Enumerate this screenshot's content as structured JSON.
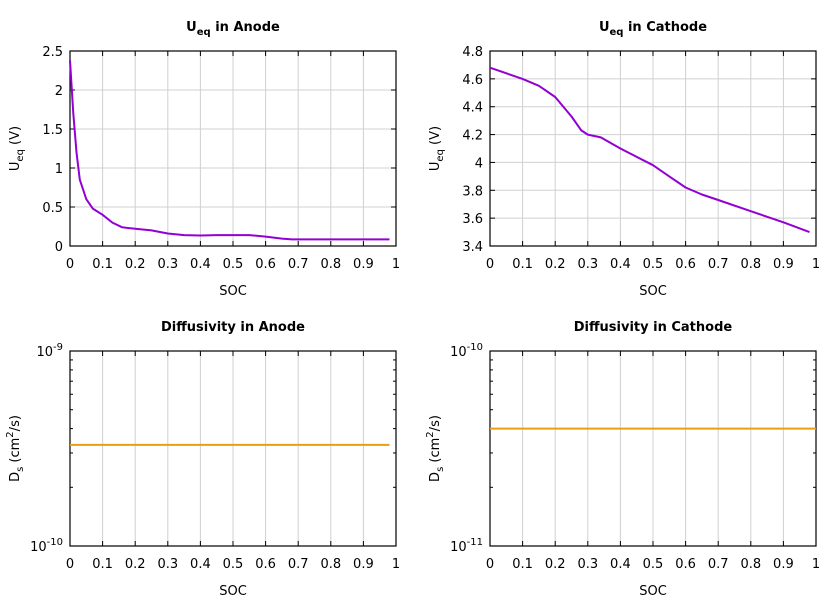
{
  "chart_data": [
    {
      "type": "line",
      "title": {
        "main": "U",
        "sub": "eq",
        "rest": " in Anode"
      },
      "xlabel": "SOC",
      "ylabel": {
        "main": "U",
        "sub": "eq",
        "rest": " (V)"
      },
      "xlim": [
        0,
        1
      ],
      "ylim": [
        0,
        2.5
      ],
      "yscale": "linear",
      "grid": true,
      "xticks": [
        "0",
        "0.1",
        "0.2",
        "0.3",
        "0.4",
        "0.5",
        "0.6",
        "0.7",
        "0.8",
        "0.9",
        "1"
      ],
      "yticks": [
        {
          "v": 0,
          "label": "0"
        },
        {
          "v": 0.5,
          "label": "0.5"
        },
        {
          "v": 1,
          "label": "1"
        },
        {
          "v": 1.5,
          "label": "1.5"
        },
        {
          "v": 2,
          "label": "2"
        },
        {
          "v": 2.5,
          "label": "2.5"
        }
      ],
      "color": "#9400d3",
      "series": [
        {
          "x": [
            0,
            0.01,
            0.02,
            0.03,
            0.05,
            0.07,
            0.1,
            0.13,
            0.16,
            0.2,
            0.25,
            0.3,
            0.35,
            0.4,
            0.45,
            0.5,
            0.55,
            0.6,
            0.65,
            0.68,
            0.75,
            0.85,
            0.98
          ],
          "y": [
            2.38,
            1.7,
            1.2,
            0.85,
            0.6,
            0.48,
            0.4,
            0.3,
            0.24,
            0.22,
            0.2,
            0.16,
            0.14,
            0.135,
            0.14,
            0.14,
            0.14,
            0.12,
            0.095,
            0.085,
            0.085,
            0.085,
            0.085
          ]
        }
      ]
    },
    {
      "type": "line",
      "title": {
        "main": "U",
        "sub": "eq",
        "rest": " in Cathode"
      },
      "xlabel": "SOC",
      "ylabel": {
        "main": "U",
        "sub": "eq",
        "rest": " (V)"
      },
      "xlim": [
        0,
        1
      ],
      "ylim": [
        3.4,
        4.8
      ],
      "yscale": "linear",
      "grid": true,
      "xticks": [
        "0",
        "0.1",
        "0.2",
        "0.3",
        "0.4",
        "0.5",
        "0.6",
        "0.7",
        "0.8",
        "0.9",
        "1"
      ],
      "yticks": [
        {
          "v": 3.4,
          "label": "3.4"
        },
        {
          "v": 3.6,
          "label": "3.6"
        },
        {
          "v": 3.8,
          "label": "3.8"
        },
        {
          "v": 4,
          "label": "4"
        },
        {
          "v": 4.2,
          "label": "4.2"
        },
        {
          "v": 4.4,
          "label": "4.4"
        },
        {
          "v": 4.6,
          "label": "4.6"
        },
        {
          "v": 4.8,
          "label": "4.8"
        }
      ],
      "color": "#9400d3",
      "series": [
        {
          "x": [
            0,
            0.1,
            0.15,
            0.2,
            0.25,
            0.28,
            0.3,
            0.34,
            0.4,
            0.45,
            0.5,
            0.55,
            0.6,
            0.65,
            0.7,
            0.8,
            0.9,
            0.98
          ],
          "y": [
            4.68,
            4.6,
            4.55,
            4.47,
            4.33,
            4.23,
            4.2,
            4.18,
            4.1,
            4.04,
            3.98,
            3.9,
            3.82,
            3.77,
            3.73,
            3.65,
            3.57,
            3.5
          ]
        }
      ]
    },
    {
      "type": "line",
      "title": {
        "main": "Diffusivity in Anode",
        "sub": "",
        "rest": ""
      },
      "xlabel": "SOC",
      "ylabel": {
        "main": "D",
        "sub": "s",
        "rest": " (cm",
        "sup": "2",
        "rest2": "/s)"
      },
      "xlim": [
        0,
        1
      ],
      "ylim": [
        1e-10,
        1e-09
      ],
      "yscale": "log",
      "grid": "x-only",
      "xticks": [
        "0",
        "0.1",
        "0.2",
        "0.3",
        "0.4",
        "0.5",
        "0.6",
        "0.7",
        "0.8",
        "0.9",
        "1"
      ],
      "yticks": [
        {
          "v": 1e-10,
          "base": "10",
          "exp": "-10"
        },
        {
          "v": 1e-09,
          "base": "10",
          "exp": "-9"
        }
      ],
      "color": "#e6a010",
      "series": [
        {
          "x": [
            0,
            0.98
          ],
          "y": [
            3.3e-10,
            3.3e-10
          ]
        }
      ]
    },
    {
      "type": "line",
      "title": {
        "main": "Diffusivity in Cathode",
        "sub": "",
        "rest": ""
      },
      "xlabel": "SOC",
      "ylabel": {
        "main": "D",
        "sub": "s",
        "rest": " (cm",
        "sup": "2",
        "rest2": "/s)"
      },
      "xlim": [
        0,
        1
      ],
      "ylim": [
        1e-11,
        1e-10
      ],
      "yscale": "log",
      "grid": "x-only",
      "xticks": [
        "0",
        "0.1",
        "0.2",
        "0.3",
        "0.4",
        "0.5",
        "0.6",
        "0.7",
        "0.8",
        "0.9",
        "1"
      ],
      "yticks": [
        {
          "v": 1e-11,
          "base": "10",
          "exp": "-11"
        },
        {
          "v": 1e-10,
          "base": "10",
          "exp": "-10"
        }
      ],
      "color": "#e6a010",
      "series": [
        {
          "x": [
            0,
            1
          ],
          "y": [
            4e-11,
            4e-11
          ]
        }
      ]
    }
  ]
}
